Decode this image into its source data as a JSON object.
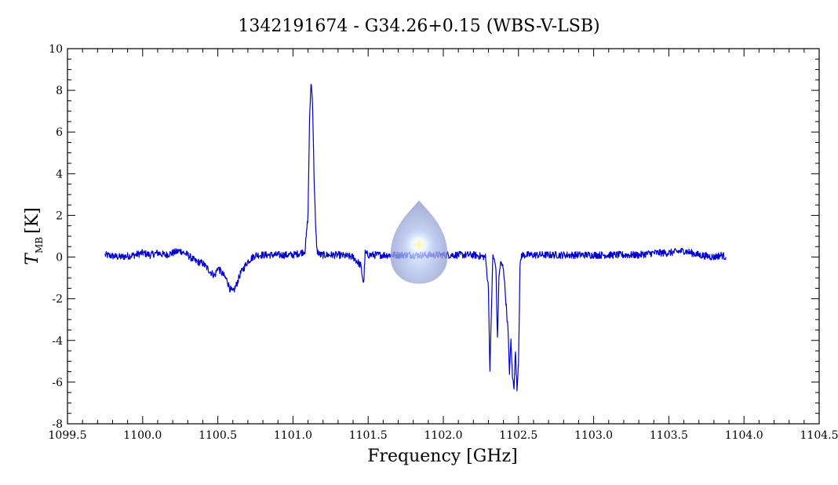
{
  "chart_data": {
    "type": "line",
    "title": "1342191674 - G34.26+0.15 (WBS-V-LSB)",
    "xlabel": "Frequency [GHz]",
    "ylabel_main": "T",
    "ylabel_sub": "MB",
    "ylabel_unit": "[K]",
    "xlim": [
      1099.5,
      1104.5
    ],
    "ylim": [
      -8,
      10
    ],
    "xticks": [
      1099.5,
      1100.0,
      1100.5,
      1101.0,
      1101.5,
      1102.0,
      1102.5,
      1103.0,
      1103.5,
      1104.0,
      1104.5
    ],
    "xtick_labels": [
      "1099.5",
      "1100.0",
      "1100.5",
      "1101.0",
      "1101.5",
      "1102.0",
      "1102.5",
      "1103.0",
      "1103.5",
      "1104.0",
      "1104.5"
    ],
    "yticks": [
      -8,
      -6,
      -4,
      -2,
      0,
      2,
      4,
      6,
      8,
      10
    ],
    "ytick_labels": [
      "-8",
      "-6",
      "-4",
      "-2",
      "0",
      "2",
      "4",
      "6",
      "8",
      "10"
    ],
    "line_color": "#0000cc",
    "grid": false,
    "series": [
      {
        "x": [
          1099.75,
          1099.85,
          1099.95,
          1100.0,
          1100.05,
          1100.1,
          1100.15,
          1100.2,
          1100.25,
          1100.3,
          1100.35,
          1100.4,
          1100.45,
          1100.48,
          1100.5,
          1100.53,
          1100.56,
          1100.58,
          1100.6,
          1100.62,
          1100.65,
          1100.7,
          1100.75,
          1100.8,
          1100.9,
          1101.0,
          1101.05,
          1101.08,
          1101.1,
          1101.11,
          1101.12,
          1101.13,
          1101.14,
          1101.15,
          1101.16,
          1101.18,
          1101.2,
          1101.3,
          1101.4,
          1101.45,
          1101.47,
          1101.48,
          1101.5,
          1101.6,
          1101.7,
          1101.8,
          1101.9,
          1102.0,
          1102.1,
          1102.2,
          1102.28,
          1102.3,
          1102.31,
          1102.32,
          1102.33,
          1102.35,
          1102.36,
          1102.37,
          1102.38,
          1102.4,
          1102.43,
          1102.44,
          1102.45,
          1102.46,
          1102.47,
          1102.48,
          1102.49,
          1102.5,
          1102.51,
          1102.52,
          1102.55,
          1102.6,
          1102.7,
          1102.8,
          1102.9,
          1103.0,
          1103.1,
          1103.2,
          1103.3,
          1103.4,
          1103.5,
          1103.6,
          1103.7,
          1103.8,
          1103.85,
          1103.88
        ],
        "y": [
          0.1,
          0.0,
          0.1,
          0.2,
          0.1,
          0.2,
          0.1,
          0.2,
          0.3,
          0.1,
          -0.2,
          -0.3,
          -0.7,
          -0.9,
          -0.5,
          -0.8,
          -1.1,
          -1.5,
          -1.7,
          -1.4,
          -0.8,
          -0.2,
          0.1,
          0.1,
          0.1,
          0.1,
          0.2,
          0.3,
          2.0,
          6.5,
          8.4,
          7.5,
          4.0,
          1.5,
          0.3,
          0.1,
          0.1,
          0.1,
          0.0,
          -0.4,
          -1.3,
          0.2,
          0.1,
          0.1,
          0.1,
          0.1,
          0.1,
          0.1,
          0.1,
          0.1,
          0.0,
          -1.5,
          -5.5,
          -2.5,
          0.1,
          -0.5,
          -4.0,
          -1.0,
          -0.3,
          -0.5,
          -3.5,
          -5.5,
          -4.0,
          -5.8,
          -6.2,
          -4.5,
          -6.4,
          -5.0,
          -0.5,
          0.1,
          0.1,
          0.1,
          0.1,
          0.1,
          0.1,
          0.1,
          0.1,
          0.1,
          0.1,
          0.2,
          0.2,
          0.3,
          0.1,
          0.0,
          0.1,
          0.0
        ]
      }
    ]
  }
}
